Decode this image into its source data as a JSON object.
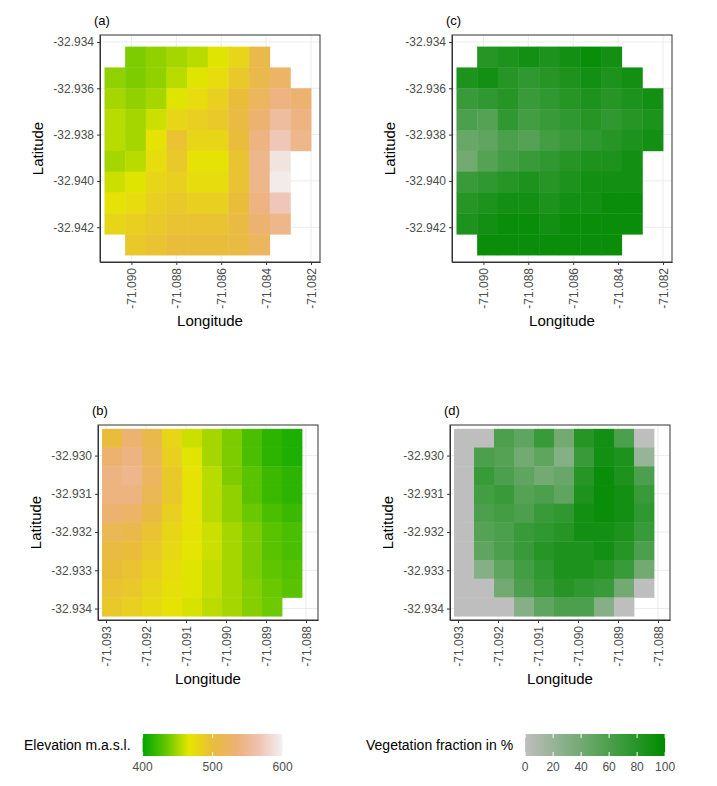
{
  "chart_data": [
    {
      "type": "heatmap",
      "title": "(a)",
      "x_label": "Longitude",
      "y_label": "Latitude",
      "xlim": [
        -71.0914,
        -71.0816
      ],
      "ylim": [
        -32.9435,
        -32.9337
      ],
      "grid": true,
      "xticks": [
        {
          "value": -71.09,
          "label": "-71.090"
        },
        -71.088,
        -71.086,
        -71.084,
        -71.082
      ],
      "yticks": [
        -32.934,
        -32.936,
        -32.938,
        {
          "value": -32.94,
          "label": "-32.940"
        },
        -32.942
      ],
      "x_bins": [
        -71.0912,
        -71.09028,
        -71.08936,
        -71.08844,
        -71.08752,
        -71.0866,
        -71.08568,
        -71.08476,
        -71.08384,
        -71.08292,
        -71.082
      ],
      "y_bins": [
        -32.9342,
        -32.9351,
        -32.936,
        -32.9369,
        -32.9378,
        -32.9387,
        -32.9396,
        -32.9405,
        -32.9414,
        -32.9423,
        -32.9432
      ],
      "z": [
        [
          null,
          440,
          445,
          450,
          455,
          465,
          480,
          510,
          null,
          null
        ],
        [
          445,
          440,
          445,
          455,
          465,
          475,
          490,
          510,
          525,
          null
        ],
        [
          450,
          445,
          450,
          465,
          475,
          485,
          500,
          520,
          540,
          530
        ],
        [
          455,
          450,
          460,
          480,
          485,
          490,
          505,
          530,
          555,
          540
        ],
        [
          455,
          450,
          470,
          495,
          480,
          480,
          500,
          540,
          570,
          545
        ],
        [
          450,
          455,
          475,
          490,
          470,
          470,
          495,
          545,
          590,
          null
        ],
        [
          460,
          465,
          480,
          485,
          475,
          475,
          495,
          545,
          595,
          null
        ],
        [
          470,
          475,
          485,
          490,
          485,
          485,
          500,
          540,
          570,
          null
        ],
        [
          480,
          485,
          490,
          495,
          495,
          495,
          505,
          530,
          545,
          null
        ],
        [
          null,
          490,
          495,
          500,
          500,
          500,
          505,
          520,
          null,
          null
        ]
      ]
    },
    {
      "type": "heatmap",
      "title": "(b)",
      "x_label": "Longitude",
      "y_label": "Latitude",
      "xlim": [
        -71.0932,
        -71.0877
      ],
      "ylim": [
        -32.9343,
        -32.9292
      ],
      "grid": true,
      "xticks": [
        -71.093,
        -71.092,
        -71.091,
        {
          "value": -71.09,
          "label": "-71.090"
        },
        -71.089,
        -71.088
      ],
      "yticks": [
        {
          "value": -32.93,
          "label": "-32.930"
        },
        -32.931,
        -32.932,
        -32.933,
        -32.934
      ],
      "x_bins": [
        -71.0931,
        -71.0926,
        -71.0921,
        -71.0916,
        -71.0911,
        -71.0906,
        -71.0901,
        -71.0896,
        -71.0891,
        -71.0886,
        -71.0881
      ],
      "y_bins": [
        -32.9293,
        -32.92979,
        -32.93028,
        -32.93077,
        -32.93126,
        -32.93175,
        -32.93224,
        -32.93273,
        -32.93322,
        -32.93371,
        -32.9342
      ],
      "z": [
        [
          500,
          530,
          510,
          480,
          460,
          450,
          440,
          425,
          415,
          410
        ],
        [
          530,
          540,
          515,
          485,
          465,
          450,
          440,
          425,
          415,
          410
        ],
        [
          540,
          545,
          520,
          490,
          470,
          455,
          440,
          430,
          420,
          415
        ],
        [
          540,
          540,
          515,
          490,
          470,
          455,
          445,
          430,
          420,
          415
        ],
        [
          530,
          525,
          505,
          485,
          470,
          455,
          445,
          435,
          425,
          420
        ],
        [
          515,
          510,
          495,
          480,
          470,
          460,
          450,
          440,
          430,
          425
        ],
        [
          505,
          500,
          490,
          478,
          468,
          460,
          450,
          440,
          430,
          425
        ],
        [
          500,
          495,
          485,
          475,
          465,
          458,
          450,
          440,
          432,
          428
        ],
        [
          495,
          490,
          480,
          472,
          465,
          458,
          450,
          442,
          435,
          430
        ],
        [
          490,
          485,
          478,
          470,
          463,
          456,
          450,
          442,
          436,
          null
        ]
      ],
      "colorbar": {
        "title": "Elevation m.a.s.l.",
        "range": [
          400,
          600
        ],
        "ticks": [
          400,
          500,
          600
        ],
        "colors": [
          "#00A600",
          "#63C600",
          "#E6E600",
          "#E9BD3A",
          "#ECB176",
          "#EFC2B3",
          "#F2F2F2"
        ]
      }
    },
    {
      "type": "heatmap",
      "title": "(c)",
      "x_label": "Longitude",
      "y_label": "Latitude",
      "xlim": [
        -71.0914,
        -71.0816
      ],
      "ylim": [
        -32.9435,
        -32.9337
      ],
      "grid": true,
      "xticks": [
        {
          "value": -71.09,
          "label": "-71.090"
        },
        -71.088,
        -71.086,
        -71.084,
        -71.082
      ],
      "yticks": [
        -32.934,
        -32.936,
        -32.938,
        {
          "value": -32.94,
          "label": "-32.940"
        },
        -32.942
      ],
      "x_bins": [
        -71.0912,
        -71.09028,
        -71.08936,
        -71.08844,
        -71.08752,
        -71.0866,
        -71.08568,
        -71.08476,
        -71.08384,
        -71.08292,
        -71.082
      ],
      "y_bins": [
        -32.9342,
        -32.9351,
        -32.936,
        -32.9369,
        -32.9378,
        -32.9387,
        -32.9396,
        -32.9405,
        -32.9414,
        -32.9423,
        -32.9432
      ],
      "z": [
        [
          null,
          80,
          85,
          90,
          85,
          90,
          95,
          90,
          null,
          null
        ],
        [
          85,
          90,
          80,
          75,
          80,
          85,
          90,
          85,
          90,
          null
        ],
        [
          70,
          75,
          80,
          70,
          75,
          80,
          85,
          80,
          85,
          90
        ],
        [
          60,
          55,
          75,
          65,
          70,
          75,
          80,
          75,
          80,
          85
        ],
        [
          45,
          50,
          60,
          55,
          65,
          70,
          75,
          80,
          85,
          90
        ],
        [
          40,
          55,
          65,
          70,
          75,
          80,
          85,
          85,
          90,
          null
        ],
        [
          70,
          75,
          80,
          85,
          80,
          85,
          90,
          90,
          90,
          null
        ],
        [
          80,
          85,
          90,
          90,
          85,
          90,
          90,
          95,
          95,
          null
        ],
        [
          85,
          90,
          95,
          95,
          90,
          95,
          95,
          95,
          95,
          null
        ],
        [
          null,
          95,
          95,
          95,
          95,
          95,
          95,
          95,
          null,
          null
        ]
      ]
    },
    {
      "type": "heatmap",
      "title": "(d)",
      "x_label": "Longitude",
      "y_label": "Latitude",
      "xlim": [
        -71.0932,
        -71.0877
      ],
      "ylim": [
        -32.9343,
        -32.9292
      ],
      "grid": true,
      "xticks": [
        -71.093,
        -71.092,
        -71.091,
        {
          "value": -71.09,
          "label": "-71.090"
        },
        -71.089,
        -71.088
      ],
      "yticks": [
        {
          "value": -32.93,
          "label": "-32.930"
        },
        -32.931,
        -32.932,
        -32.933,
        -32.934
      ],
      "x_bins": [
        -71.0931,
        -71.0926,
        -71.0921,
        -71.0916,
        -71.0911,
        -71.0906,
        -71.0901,
        -71.0896,
        -71.0891,
        -71.0886,
        -71.0881
      ],
      "y_bins": [
        -32.9293,
        -32.92979,
        -32.93028,
        -32.93077,
        -32.93126,
        -32.93175,
        -32.93224,
        -32.93273,
        -32.93322,
        -32.93371,
        -32.9342
      ],
      "z": [
        [
          0,
          0,
          60,
          50,
          70,
          40,
          80,
          90,
          60,
          0
        ],
        [
          0,
          60,
          55,
          40,
          50,
          30,
          70,
          90,
          85,
          20
        ],
        [
          0,
          70,
          60,
          50,
          40,
          45,
          80,
          95,
          85,
          60
        ],
        [
          0,
          65,
          70,
          55,
          60,
          50,
          85,
          95,
          90,
          70
        ],
        [
          0,
          60,
          65,
          60,
          70,
          75,
          90,
          95,
          90,
          75
        ],
        [
          0,
          55,
          60,
          70,
          75,
          80,
          90,
          90,
          85,
          70
        ],
        [
          0,
          50,
          60,
          70,
          80,
          85,
          85,
          90,
          80,
          60
        ],
        [
          0,
          30,
          50,
          65,
          75,
          85,
          85,
          80,
          70,
          40
        ],
        [
          0,
          0,
          40,
          60,
          70,
          80,
          75,
          70,
          40,
          0
        ],
        [
          0,
          0,
          0,
          30,
          50,
          60,
          60,
          30,
          0,
          null
        ]
      ],
      "colorbar": {
        "title": "Vegetation fraction in %",
        "range": [
          0,
          100
        ],
        "ticks": [
          0,
          20,
          40,
          60,
          80,
          100
        ],
        "colors": [
          "#BEBEBE",
          "#008B00"
        ]
      }
    }
  ]
}
